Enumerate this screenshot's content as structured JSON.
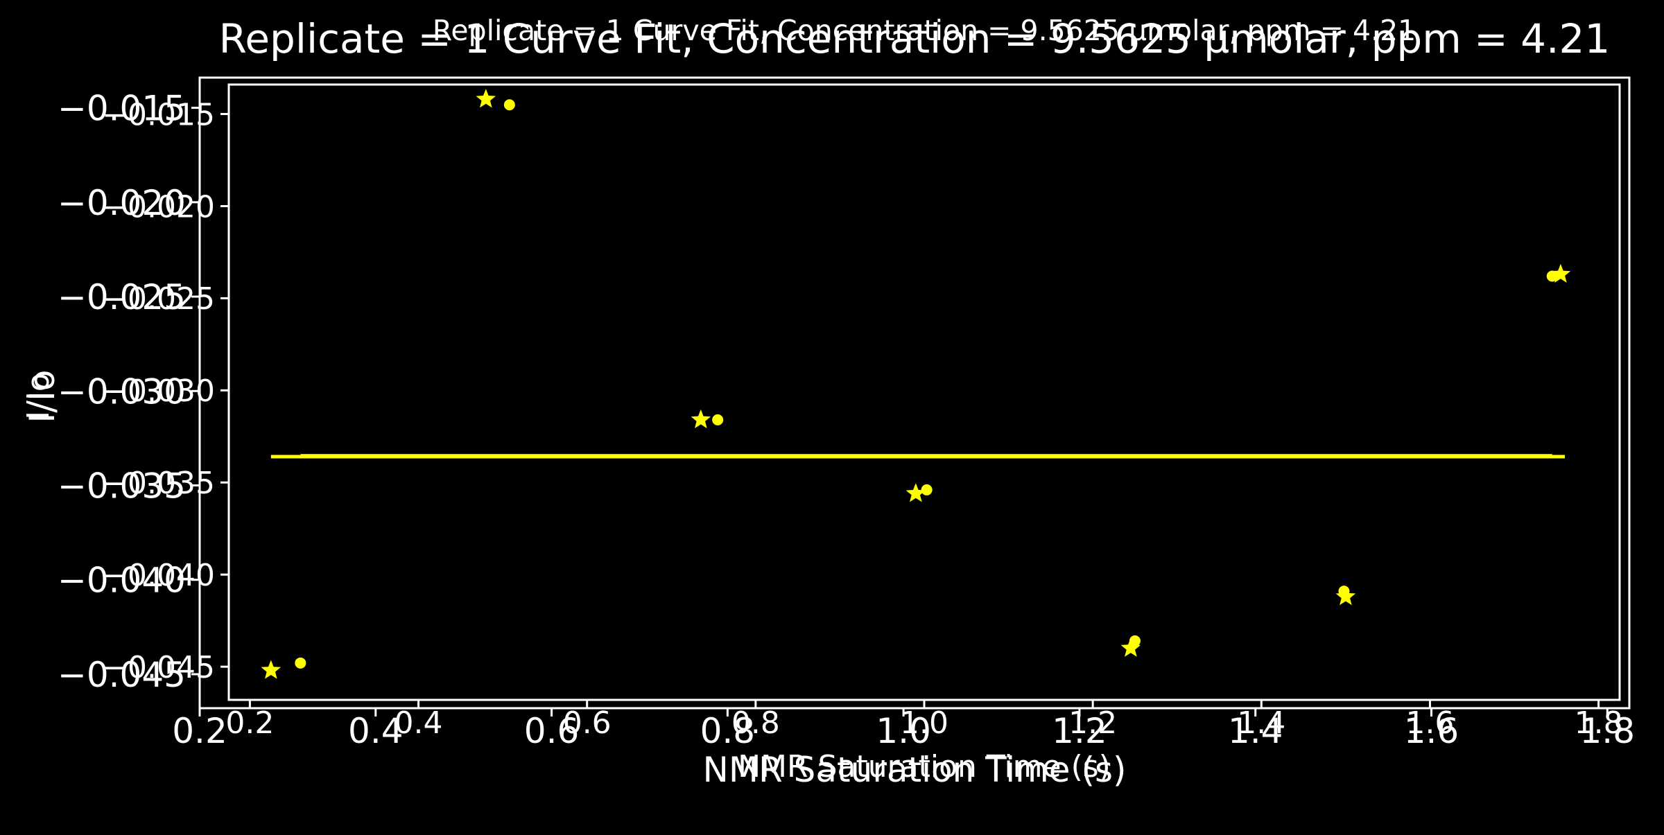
{
  "chart_data": [
    {
      "type": "scatter",
      "title": "Replicate = 1 Curve Fit, Concentration = 9.5625 µmolar, ppm = 4.21",
      "xlabel": "NMR Saturation Time (s)",
      "ylabel": "I/Io",
      "xlim": [
        0.175,
        1.825
      ],
      "ylim": [
        -0.0468,
        -0.0134
      ],
      "xticks": [
        0.2,
        0.4,
        0.6,
        0.8,
        1.0,
        1.2,
        1.4,
        1.6,
        1.8
      ],
      "xtick_labels": [
        "0.2",
        "0.4",
        "0.6",
        "0.8",
        "1.0",
        "1.2",
        "1.4",
        "1.6",
        "1.8"
      ],
      "yticks": [
        -0.015,
        -0.02,
        -0.025,
        -0.03,
        -0.035,
        -0.04,
        -0.045
      ],
      "ytick_labels": [
        "−0.015",
        "−0.020",
        "−0.025",
        "−0.030",
        "−0.035",
        "−0.040",
        "−0.045"
      ],
      "grid": false,
      "color": "#ffff00",
      "series": [
        {
          "marker": "star",
          "x": [
            0.225,
            0.48,
            0.735,
            0.99,
            1.245,
            1.5,
            1.755
          ],
          "y": [
            -0.0452,
            -0.0142,
            -0.0316,
            -0.0356,
            -0.044,
            -0.0412,
            -0.0237
          ]
        },
        {
          "marker": "circle",
          "x": [
            0.26,
            0.508,
            0.755,
            1.003,
            1.25,
            1.498,
            1.745
          ],
          "y": [
            -0.0448,
            -0.0145,
            -0.0316,
            -0.0354,
            -0.0436,
            -0.0409,
            -0.0238
          ]
        },
        {
          "marker": "line",
          "x": [
            0.225,
            1.76
          ],
          "y": [
            -0.0336,
            -0.0336
          ]
        },
        {
          "marker": "line",
          "x": [
            0.26,
            1.745
          ],
          "y": [
            -0.03355,
            -0.03355
          ]
        }
      ]
    },
    {
      "type": "scatter",
      "title": "Replicate = 1 Curve Fit, Concentration = 9.5625 µmolar, ppm = 4.21",
      "xlabel": "NMR Saturation Time (s)",
      "ylabel": "I/Io",
      "xlim": [
        0.2,
        1.825
      ],
      "ylim": [
        -0.0468,
        -0.0134
      ],
      "xticks": [
        0.2,
        0.4,
        0.6,
        0.8,
        1.0,
        1.2,
        1.4,
        1.6,
        1.8
      ],
      "xtick_labels": [
        "0.2",
        "0.4",
        "0.6",
        "0.8",
        "1.0",
        "1.2",
        "1.4",
        "1.6",
        "1.8"
      ],
      "yticks": [
        -0.015,
        -0.02,
        -0.025,
        -0.03,
        -0.035,
        -0.04,
        -0.045
      ],
      "ytick_labels": [
        "−0.015",
        "−0.020",
        "−0.025",
        "−0.030",
        "−0.035",
        "−0.040",
        "−0.045"
      ],
      "grid": false,
      "color": "#ffff00",
      "series": []
    }
  ]
}
